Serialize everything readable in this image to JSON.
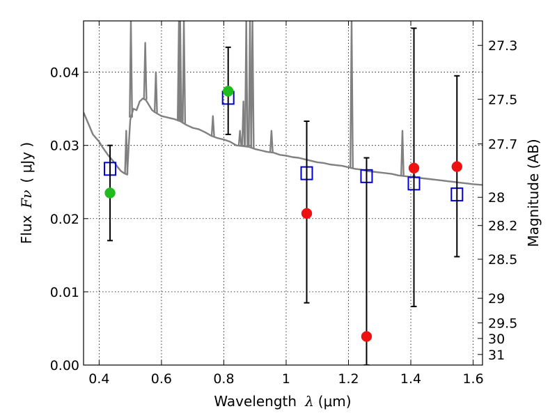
{
  "chart_data": {
    "type": "scatter",
    "title": "",
    "xlabel_prefix": "Wavelength",
    "xlabel_symbol": "λ",
    "xlabel_unit": "(μm)",
    "ylabel_prefix": "Flux",
    "ylabel_symbol": "Fν",
    "ylabel_unit": "( μJy )",
    "y2label": "Magnitude (AB)",
    "xlim": [
      0.35,
      1.63
    ],
    "ylim": [
      0.0,
      0.047
    ],
    "grid": true,
    "x_ticks": [
      {
        "value": 0.4,
        "label": "0.4"
      },
      {
        "value": 0.6,
        "label": "0.6"
      },
      {
        "value": 0.8,
        "label": "0.8"
      },
      {
        "value": 1.0,
        "label": "1"
      },
      {
        "value": 1.2,
        "label": "1.2"
      },
      {
        "value": 1.4,
        "label": "1.4"
      },
      {
        "value": 1.6,
        "label": "1.6"
      }
    ],
    "y_ticks": [
      {
        "value": 0.0,
        "label": "0.00"
      },
      {
        "value": 0.01,
        "label": "0.01"
      },
      {
        "value": 0.02,
        "label": "0.02"
      },
      {
        "value": 0.03,
        "label": "0.03"
      },
      {
        "value": 0.04,
        "label": "0.04"
      }
    ],
    "mag_ticks": [
      {
        "mag": 27.3,
        "label": "27.3"
      },
      {
        "mag": 27.5,
        "label": "27.5"
      },
      {
        "mag": 27.7,
        "label": "27.7"
      },
      {
        "mag": 28.0,
        "label": "28"
      },
      {
        "mag": 28.2,
        "label": "28.2"
      },
      {
        "mag": 28.5,
        "label": "28.5"
      },
      {
        "mag": 29.0,
        "label": "29"
      },
      {
        "mag": 29.5,
        "label": "29.5"
      },
      {
        "mag": 30.0,
        "label": "30"
      },
      {
        "mag": 31.0,
        "label": "31"
      }
    ],
    "series": [
      {
        "name": "model-spectrum",
        "kind": "line",
        "color": "#808080",
        "points": [
          [
            0.35,
            0.0345
          ],
          [
            0.37,
            0.0325
          ],
          [
            0.38,
            0.0315
          ],
          [
            0.39,
            0.031
          ],
          [
            0.4,
            0.0305
          ],
          [
            0.41,
            0.0298
          ],
          [
            0.42,
            0.0292
          ],
          [
            0.43,
            0.0286
          ],
          [
            0.44,
            0.0281
          ],
          [
            0.45,
            0.0276
          ],
          [
            0.46,
            0.027
          ],
          [
            0.47,
            0.0265
          ],
          [
            0.48,
            0.0262
          ],
          [
            0.49,
            0.026
          ],
          [
            0.495,
            0.03
          ],
          [
            0.5,
            0.0335
          ],
          [
            0.51,
            0.035
          ],
          [
            0.52,
            0.0348
          ],
          [
            0.53,
            0.036
          ],
          [
            0.54,
            0.0364
          ],
          [
            0.55,
            0.0362
          ],
          [
            0.56,
            0.0355
          ],
          [
            0.57,
            0.0348
          ],
          [
            0.58,
            0.0345
          ],
          [
            0.6,
            0.034
          ],
          [
            0.62,
            0.0338
          ],
          [
            0.64,
            0.0336
          ],
          [
            0.66,
            0.0333
          ],
          [
            0.68,
            0.0328
          ],
          [
            0.7,
            0.0324
          ],
          [
            0.72,
            0.0322
          ],
          [
            0.74,
            0.0318
          ],
          [
            0.76,
            0.0313
          ],
          [
            0.78,
            0.031
          ],
          [
            0.8,
            0.0308
          ],
          [
            0.82,
            0.0305
          ],
          [
            0.84,
            0.03
          ],
          [
            0.86,
            0.0299
          ],
          [
            0.88,
            0.0298
          ],
          [
            0.9,
            0.0295
          ],
          [
            0.92,
            0.0293
          ],
          [
            0.94,
            0.0291
          ],
          [
            0.96,
            0.029
          ],
          [
            0.98,
            0.0287
          ],
          [
            1.0,
            0.0286
          ],
          [
            1.02,
            0.0284
          ],
          [
            1.04,
            0.0283
          ],
          [
            1.06,
            0.0281
          ],
          [
            1.08,
            0.0279
          ],
          [
            1.1,
            0.0277
          ],
          [
            1.12,
            0.0276
          ],
          [
            1.14,
            0.0274
          ],
          [
            1.16,
            0.0273
          ],
          [
            1.18,
            0.0272
          ],
          [
            1.2,
            0.027
          ],
          [
            1.22,
            0.0268
          ],
          [
            1.24,
            0.0267
          ],
          [
            1.26,
            0.0265
          ],
          [
            1.28,
            0.0264
          ],
          [
            1.3,
            0.0263
          ],
          [
            1.32,
            0.0262
          ],
          [
            1.34,
            0.0261
          ],
          [
            1.36,
            0.0259
          ],
          [
            1.38,
            0.0258
          ],
          [
            1.4,
            0.0257
          ],
          [
            1.42,
            0.0256
          ],
          [
            1.44,
            0.0255
          ],
          [
            1.46,
            0.0254
          ],
          [
            1.48,
            0.0253
          ],
          [
            1.5,
            0.0252
          ],
          [
            1.52,
            0.0251
          ],
          [
            1.54,
            0.025
          ],
          [
            1.56,
            0.0249
          ],
          [
            1.58,
            0.0248
          ],
          [
            1.6,
            0.0247
          ],
          [
            1.63,
            0.0246
          ]
        ],
        "emission_lines": [
          {
            "x": 0.502,
            "peak": 0.047
          },
          {
            "x": 0.487,
            "peak": 0.032
          },
          {
            "x": 0.548,
            "peak": 0.044
          },
          {
            "x": 0.582,
            "peak": 0.04
          },
          {
            "x": 0.656,
            "peak": 0.047
          },
          {
            "x": 0.66,
            "peak": 0.047
          },
          {
            "x": 0.672,
            "peak": 0.047
          },
          {
            "x": 0.765,
            "peak": 0.034
          },
          {
            "x": 0.852,
            "peak": 0.032
          },
          {
            "x": 0.863,
            "peak": 0.036
          },
          {
            "x": 0.872,
            "peak": 0.047
          },
          {
            "x": 0.884,
            "peak": 0.047
          },
          {
            "x": 0.892,
            "peak": 0.047
          },
          {
            "x": 0.953,
            "peak": 0.032
          },
          {
            "x": 1.21,
            "peak": 0.047
          },
          {
            "x": 1.373,
            "peak": 0.032
          },
          {
            "x": 1.41,
            "peak": 0.026
          }
        ]
      },
      {
        "name": "model-photometry",
        "kind": "open-square",
        "color": "#0000cc",
        "points": [
          {
            "x": 0.435,
            "y": 0.0268
          },
          {
            "x": 0.814,
            "y": 0.0365
          },
          {
            "x": 1.066,
            "y": 0.0262
          },
          {
            "x": 1.258,
            "y": 0.0258
          },
          {
            "x": 1.41,
            "y": 0.0248
          },
          {
            "x": 1.548,
            "y": 0.0233
          }
        ]
      },
      {
        "name": "observed-flux",
        "kind": "errorbar",
        "color": "#000000",
        "points": [
          {
            "x": 0.435,
            "y": 0.0235,
            "ylow": 0.017,
            "yhigh": 0.03
          },
          {
            "x": 0.814,
            "y": 0.0374,
            "ylow": 0.0315,
            "yhigh": 0.0434
          },
          {
            "x": 1.066,
            "y": 0.0207,
            "ylow": 0.0085,
            "yhigh": 0.0333
          },
          {
            "x": 1.258,
            "y": 0.0039,
            "ylow": 0.0,
            "yhigh": 0.0283
          },
          {
            "x": 1.41,
            "y": 0.0269,
            "ylow": 0.008,
            "yhigh": 0.046
          },
          {
            "x": 1.548,
            "y": 0.0271,
            "ylow": 0.0148,
            "yhigh": 0.0395
          }
        ]
      },
      {
        "name": "detections",
        "kind": "filled-circle",
        "color": "#1fbb1f",
        "points": [
          {
            "x": 0.435,
            "y": 0.0235
          },
          {
            "x": 0.814,
            "y": 0.0374
          }
        ]
      },
      {
        "name": "low-significance",
        "kind": "filled-circle",
        "color": "#ee1111",
        "points": [
          {
            "x": 1.066,
            "y": 0.0207
          },
          {
            "x": 1.258,
            "y": 0.0039
          },
          {
            "x": 1.41,
            "y": 0.0269
          },
          {
            "x": 1.548,
            "y": 0.0271
          }
        ]
      }
    ]
  }
}
